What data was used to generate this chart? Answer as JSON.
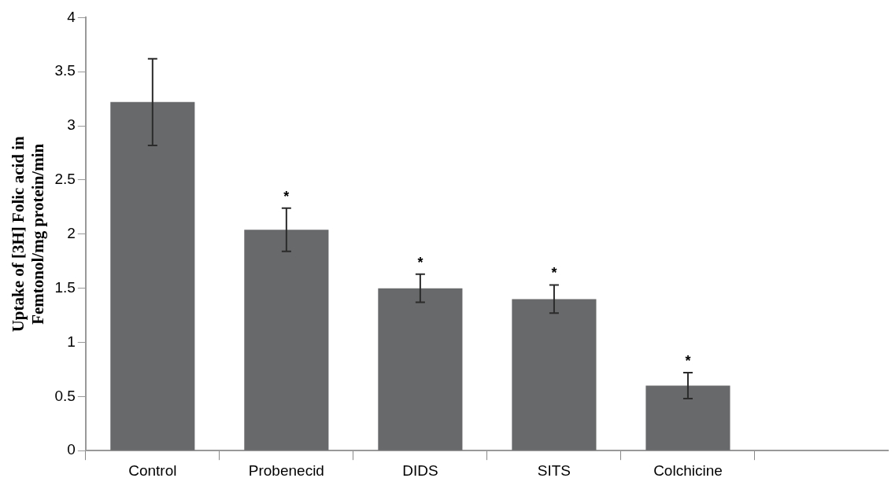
{
  "chart_data": {
    "type": "bar",
    "ylabel": "Uptake of [3H] Folic acid in Femtonol/mg protein/min",
    "categories": [
      "Control",
      "Probenecid",
      "DIDS",
      "SITS",
      "Colchicine",
      null
    ],
    "values": [
      3.22,
      2.04,
      1.5,
      1.4,
      0.6,
      null
    ],
    "errors": [
      0.4,
      0.2,
      0.13,
      0.13,
      0.12,
      null
    ],
    "color": "#68696b",
    "value_labels": [
      null,
      "*",
      "*",
      "*",
      "*",
      null
    ],
    "ylim": [
      0,
      4
    ],
    "yticks": [
      0,
      0.5,
      1,
      1.5,
      2,
      2.5,
      3,
      3.5,
      4
    ],
    "grid": false
  }
}
